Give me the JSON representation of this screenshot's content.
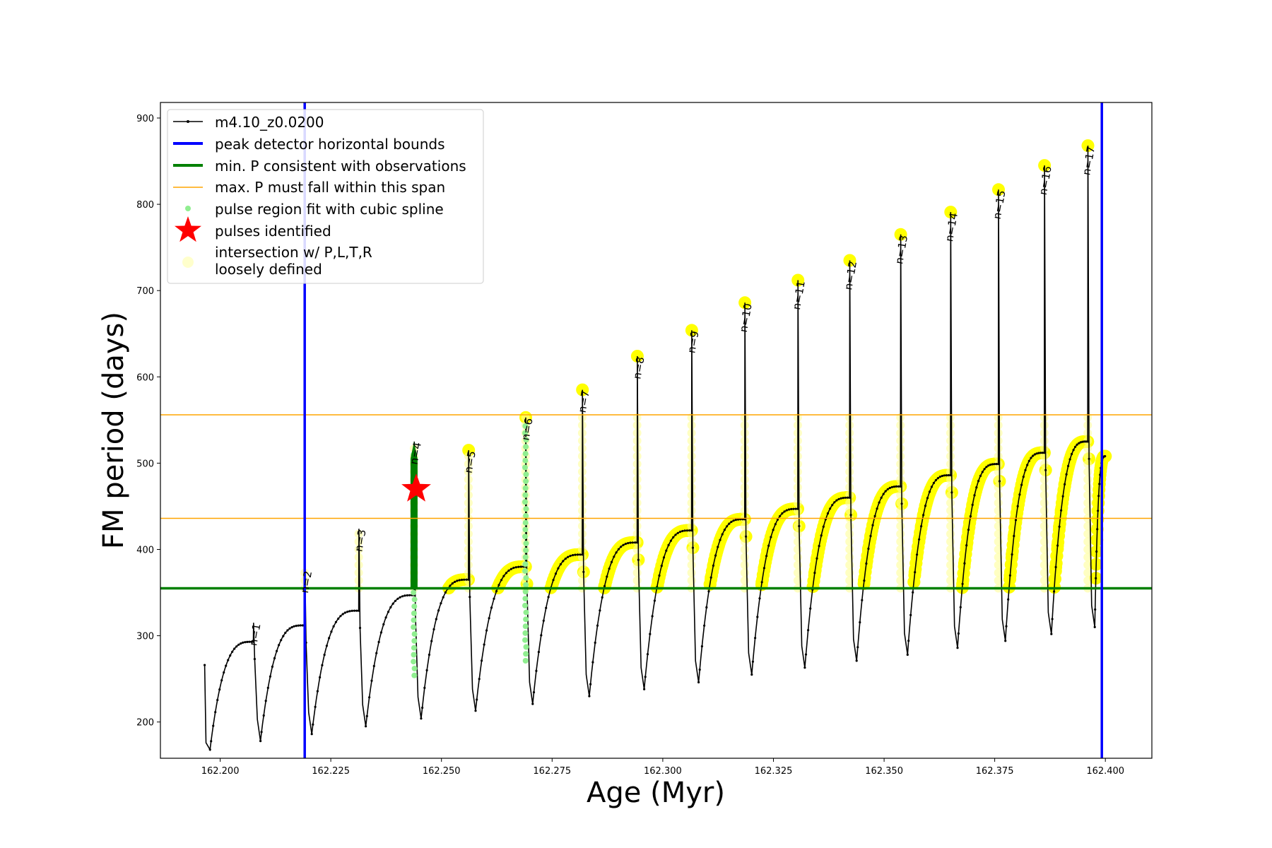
{
  "chart_data": {
    "type": "line",
    "xlabel": "Age (Myr)",
    "ylabel": "FM period (days)",
    "xlim": [
      162.1865,
      162.4105
    ],
    "ylim": [
      158,
      918
    ],
    "xticks": [
      162.2,
      162.225,
      162.25,
      162.275,
      162.3,
      162.325,
      162.35,
      162.375,
      162.4
    ],
    "xtick_labels": [
      "162.200",
      "162.225",
      "162.250",
      "162.275",
      "162.300",
      "162.325",
      "162.350",
      "162.375",
      "162.400"
    ],
    "yticks": [
      200,
      300,
      400,
      500,
      600,
      700,
      800,
      900
    ],
    "ytick_labels": [
      "200",
      "300",
      "400",
      "500",
      "600",
      "700",
      "800",
      "900"
    ],
    "grid": false,
    "legend_position": "upper-left",
    "legend": [
      "m4.10_z0.0200",
      "peak detector horizontal bounds",
      "min. P consistent with observations",
      "max. P must fall within this span",
      "pulse region fit with cubic spline",
      "pulses identified",
      "intersection w/ P,L,T,R\nloosely defined"
    ],
    "colors": {
      "track": "#000000",
      "bounds": "#0000ff",
      "min_p": "#008000",
      "max_p": "#ffa500",
      "spline": "#90ee90",
      "pulse_star": "#ff0000",
      "intersection": "#ffff00"
    },
    "peak_detector_bounds_x": [
      162.2191,
      162.3992
    ],
    "min_period_line_y": 355,
    "max_period_span_y": [
      436,
      556
    ],
    "start_segment": {
      "x": 162.1965,
      "min": 168,
      "peak": 266
    },
    "cycles": [
      {
        "n": 1,
        "x": 162.2075,
        "rise_start": 168,
        "peak": 315,
        "max": 293,
        "min": 178
      },
      {
        "n": 2,
        "x": 162.2191,
        "rise_start": 178,
        "peak": 376,
        "max": 312,
        "min": 186
      },
      {
        "n": 3,
        "x": 162.2313,
        "rise_start": 186,
        "peak": 424,
        "max": 329,
        "min": 195
      },
      {
        "n": 4,
        "x": 162.2438,
        "rise_start": 195,
        "peak": 525,
        "max": 347,
        "min": 204
      },
      {
        "n": 5,
        "x": 162.2561,
        "rise_start": 204,
        "peak": 515,
        "max": 365,
        "min": 213
      },
      {
        "n": 6,
        "x": 162.269,
        "rise_start": 213,
        "peak": 553,
        "max": 380,
        "min": 221
      },
      {
        "n": 7,
        "x": 162.2818,
        "rise_start": 221,
        "peak": 585,
        "max": 394,
        "min": 230
      },
      {
        "n": 8,
        "x": 162.2942,
        "rise_start": 230,
        "peak": 624,
        "max": 408,
        "min": 238
      },
      {
        "n": 9,
        "x": 162.3065,
        "rise_start": 238,
        "peak": 654,
        "max": 422,
        "min": 246
      },
      {
        "n": 10,
        "x": 162.3185,
        "rise_start": 246,
        "peak": 686,
        "max": 435,
        "min": 255
      },
      {
        "n": 11,
        "x": 162.3305,
        "rise_start": 255,
        "peak": 712,
        "max": 447,
        "min": 263
      },
      {
        "n": 12,
        "x": 162.3422,
        "rise_start": 263,
        "peak": 735,
        "max": 460,
        "min": 271
      },
      {
        "n": 13,
        "x": 162.3537,
        "rise_start": 271,
        "peak": 765,
        "max": 473,
        "min": 278
      },
      {
        "n": 14,
        "x": 162.365,
        "rise_start": 278,
        "peak": 791,
        "max": 486,
        "min": 286
      },
      {
        "n": 15,
        "x": 162.3758,
        "rise_start": 286,
        "peak": 817,
        "max": 499,
        "min": 294
      },
      {
        "n": 16,
        "x": 162.3862,
        "rise_start": 294,
        "peak": 845,
        "max": 512,
        "min": 302
      },
      {
        "n": 17,
        "x": 162.396,
        "rise_start": 302,
        "peak": 868,
        "max": 525,
        "min": 310
      }
    ],
    "final_segment_end": {
      "x": 162.4,
      "value": 508
    },
    "pulses_identified": [
      {
        "x": 162.2443,
        "y": 470
      }
    ],
    "pulse_label_prefix": "n=",
    "spline_pulses": [
      4,
      6
    ]
  }
}
